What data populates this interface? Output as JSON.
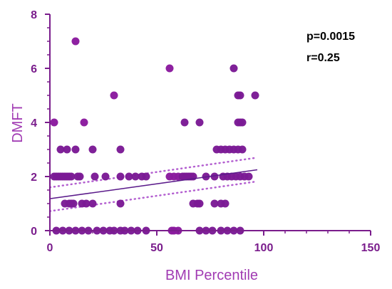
{
  "chart_data": {
    "type": "scatter",
    "xlabel": "BMI Percentile",
    "ylabel": "DMFT",
    "xlim": [
      0,
      150
    ],
    "ylim": [
      0,
      8
    ],
    "xticks": [
      0,
      50,
      100,
      150
    ],
    "yticks": [
      0,
      2,
      4,
      6,
      8
    ],
    "annotations": [
      "p=0.0015",
      "r=0.25"
    ],
    "grid": false,
    "regression": {
      "fit": [
        [
          0,
          1.18
        ],
        [
          97,
          2.25
        ]
      ],
      "ci_upper": [
        [
          0,
          1.6
        ],
        [
          97,
          2.7
        ]
      ],
      "ci_lower": [
        [
          0,
          0.72
        ],
        [
          97,
          1.82
        ]
      ]
    },
    "points": [
      [
        2,
        4
      ],
      [
        2,
        2
      ],
      [
        3,
        2
      ],
      [
        4,
        2
      ],
      [
        5,
        2
      ],
      [
        6,
        2
      ],
      [
        7,
        2
      ],
      [
        8,
        2
      ],
      [
        9,
        2
      ],
      [
        10,
        2
      ],
      [
        5,
        3
      ],
      [
        8,
        3
      ],
      [
        12,
        3
      ],
      [
        12,
        7
      ],
      [
        16,
        4
      ],
      [
        20,
        3
      ],
      [
        7,
        1
      ],
      [
        9,
        1
      ],
      [
        10,
        1
      ],
      [
        11,
        1
      ],
      [
        15,
        1
      ],
      [
        17,
        1
      ],
      [
        20,
        1
      ],
      [
        13,
        2
      ],
      [
        14,
        2
      ],
      [
        21,
        2
      ],
      [
        26,
        2
      ],
      [
        33,
        2
      ],
      [
        37,
        2
      ],
      [
        40,
        2
      ],
      [
        43,
        2
      ],
      [
        45,
        2
      ],
      [
        3,
        0
      ],
      [
        6,
        0
      ],
      [
        9,
        0
      ],
      [
        12,
        0
      ],
      [
        15,
        0
      ],
      [
        18,
        0
      ],
      [
        22,
        0
      ],
      [
        25,
        0
      ],
      [
        28,
        0
      ],
      [
        30,
        0
      ],
      [
        33,
        0
      ],
      [
        35,
        0
      ],
      [
        38,
        0
      ],
      [
        41,
        0
      ],
      [
        45,
        0
      ],
      [
        30,
        5
      ],
      [
        33,
        3
      ],
      [
        33,
        1
      ],
      [
        56,
        6
      ],
      [
        57,
        0
      ],
      [
        58,
        0
      ],
      [
        60,
        0
      ],
      [
        56,
        2
      ],
      [
        58,
        2
      ],
      [
        60,
        2
      ],
      [
        62,
        2
      ],
      [
        63,
        2
      ],
      [
        64,
        2
      ],
      [
        65,
        2
      ],
      [
        66,
        2
      ],
      [
        67,
        2
      ],
      [
        63,
        4
      ],
      [
        70,
        4
      ],
      [
        67,
        1
      ],
      [
        69,
        1
      ],
      [
        70,
        1
      ],
      [
        70,
        0
      ],
      [
        73,
        0
      ],
      [
        76,
        0
      ],
      [
        80,
        0
      ],
      [
        83,
        0
      ],
      [
        86,
        0
      ],
      [
        89,
        0
      ],
      [
        73,
        2
      ],
      [
        77,
        2
      ],
      [
        78,
        3
      ],
      [
        80,
        3
      ],
      [
        82,
        3
      ],
      [
        84,
        3
      ],
      [
        86,
        3
      ],
      [
        88,
        3
      ],
      [
        90,
        3
      ],
      [
        81,
        2
      ],
      [
        83,
        2
      ],
      [
        85,
        2
      ],
      [
        87,
        2
      ],
      [
        89,
        2
      ],
      [
        91,
        2
      ],
      [
        93,
        2
      ],
      [
        77,
        1
      ],
      [
        80,
        1
      ],
      [
        82,
        1
      ],
      [
        86,
        6
      ],
      [
        88,
        4
      ],
      [
        89,
        4
      ],
      [
        90,
        4
      ],
      [
        88,
        5
      ],
      [
        89,
        5
      ],
      [
        96,
        5
      ]
    ]
  }
}
